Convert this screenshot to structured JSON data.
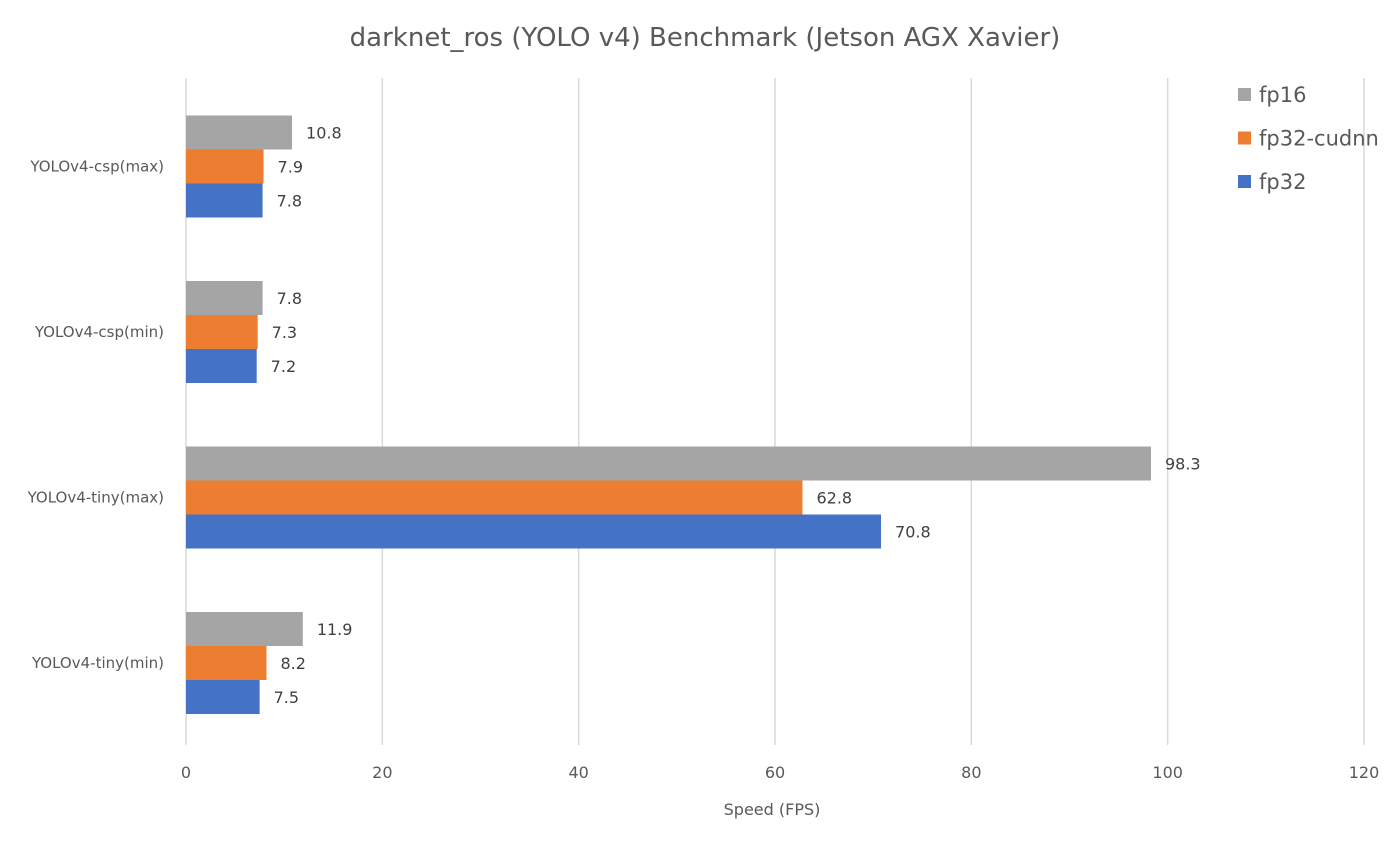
{
  "chart_data": {
    "type": "bar",
    "orientation": "horizontal",
    "title": "darknet_ros (YOLO v4) Benchmark (Jetson AGX Xavier)",
    "xlabel": "Speed (FPS)",
    "ylabel": "",
    "xlim": [
      0,
      120
    ],
    "x_ticks": [
      "0",
      "20",
      "40",
      "60",
      "80",
      "100",
      "120"
    ],
    "grid": true,
    "legend_position": "top-right",
    "categories": [
      "YOLOv4-csp(max)",
      "YOLOv4-csp(min)",
      "YOLOv4-tiny(max)",
      "YOLOv4-tiny(min)"
    ],
    "series": [
      {
        "name": "fp16",
        "color": "#a5a5a5",
        "values": [
          10.8,
          7.8,
          98.3,
          11.9
        ],
        "labels": [
          "10.8",
          "7.8",
          "98.3",
          "11.9"
        ]
      },
      {
        "name": "fp32-cudnn",
        "color": "#ed7d31",
        "values": [
          7.9,
          7.3,
          62.8,
          8.2
        ],
        "labels": [
          "7.9",
          "7.3",
          "62.8",
          "8.2"
        ]
      },
      {
        "name": "fp32",
        "color": "#4472c4",
        "values": [
          7.8,
          7.2,
          70.8,
          7.5
        ],
        "labels": [
          "7.8",
          "7.2",
          "70.8",
          "7.5"
        ]
      }
    ]
  }
}
